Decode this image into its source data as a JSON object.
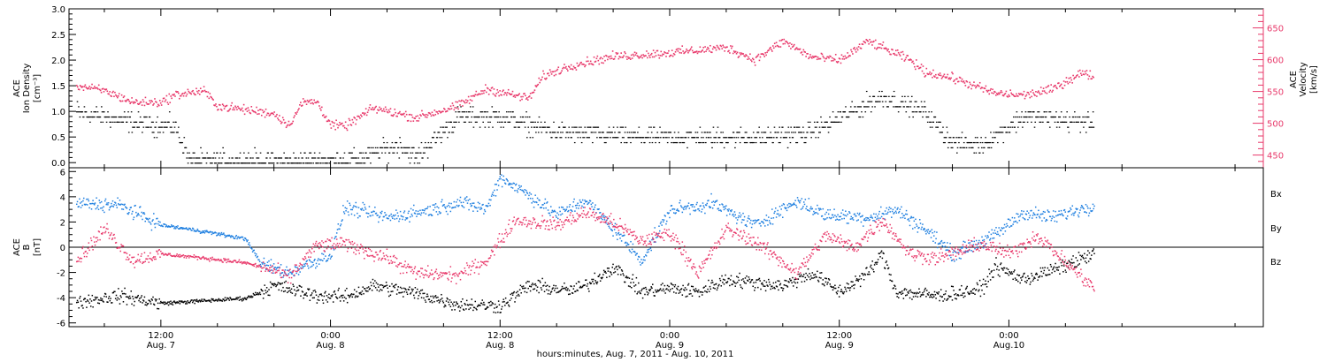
{
  "chart_data": [
    {
      "type": "scatter",
      "panel": "top",
      "ylabel_lines": [
        "ACE",
        "Ion Density",
        "[cm⁻³]"
      ],
      "y2label_lines": [
        "ACE",
        "Velocity",
        "[km/s]"
      ],
      "ylim": [
        -0.1,
        3.0
      ],
      "yticks": [
        "0.0",
        "0.5",
        "1.0",
        "1.5",
        "2.0",
        "2.5",
        "3.0"
      ],
      "y2lim": [
        430,
        680
      ],
      "y2ticks": [
        "450",
        "500",
        "550",
        "600",
        "650"
      ],
      "colors": {
        "density": "#000000",
        "velocity": "#e8386a"
      },
      "density_profile_hours_since_aug7_00": [
        [
          6,
          1.0
        ],
        [
          10,
          0.8
        ],
        [
          13,
          0.7
        ],
        [
          14,
          0.05
        ],
        [
          24,
          0.05
        ],
        [
          26,
          0.1
        ],
        [
          29,
          0.35
        ],
        [
          30,
          0.1
        ],
        [
          33,
          0.9
        ],
        [
          36,
          0.9
        ],
        [
          40,
          0.6
        ],
        [
          46,
          0.5
        ],
        [
          54,
          0.5
        ],
        [
          58,
          0.6
        ],
        [
          63,
          1.3
        ],
        [
          66,
          1.0
        ],
        [
          68,
          0.4
        ],
        [
          70,
          0.35
        ],
        [
          73,
          0.9
        ],
        [
          78,
          0.8
        ]
      ],
      "velocity_profile_hours_since_aug7_00": [
        [
          6,
          560
        ],
        [
          8,
          552
        ],
        [
          10,
          534
        ],
        [
          12,
          534
        ],
        [
          13,
          546
        ],
        [
          15,
          552
        ],
        [
          16,
          528
        ],
        [
          18,
          522
        ],
        [
          20,
          516
        ],
        [
          21,
          498
        ],
        [
          22,
          534
        ],
        [
          23,
          535
        ],
        [
          24,
          498
        ],
        [
          25,
          496
        ],
        [
          27,
          525
        ],
        [
          30,
          510
        ],
        [
          33,
          528
        ],
        [
          35,
          555
        ],
        [
          38,
          540
        ],
        [
          39,
          575
        ],
        [
          41,
          592
        ],
        [
          44,
          606
        ],
        [
          48,
          612
        ],
        [
          52,
          620
        ],
        [
          54,
          601
        ],
        [
          56,
          630
        ],
        [
          58,
          605
        ],
        [
          60,
          600
        ],
        [
          62,
          630
        ],
        [
          63,
          620
        ],
        [
          65,
          600
        ],
        [
          66,
          582
        ],
        [
          68,
          572
        ],
        [
          71,
          548
        ],
        [
          73,
          545
        ],
        [
          75,
          554
        ],
        [
          77,
          580
        ],
        [
          78,
          575
        ]
      ]
    },
    {
      "type": "scatter",
      "panel": "bottom",
      "ylabel_lines": [
        "ACE",
        "B",
        "[nT]"
      ],
      "ylim": [
        -6.3,
        6.3
      ],
      "yticks": [
        "-6",
        "-4",
        "-2",
        "0",
        "2",
        "4",
        "6"
      ],
      "xlabel": "hours:minutes, Aug.  7, 2011 - Aug. 10, 2011",
      "xlim_hours": [
        5.5,
        90
      ],
      "xticks": [
        {
          "hours": 12,
          "time": "12:00",
          "date": "Aug. 7"
        },
        {
          "hours": 24,
          "time": "0:00",
          "date": "Aug. 8"
        },
        {
          "hours": 36,
          "time": "12:00",
          "date": "Aug. 8"
        },
        {
          "hours": 48,
          "time": "0:00",
          "date": "Aug. 9"
        },
        {
          "hours": 60,
          "time": "12:00",
          "date": "Aug. 9"
        },
        {
          "hours": 72,
          "time": "0:00",
          "date": "Aug.10"
        }
      ],
      "series": [
        {
          "name": "Bx",
          "color": "#000000",
          "profile": [
            [
              6,
              -4.3
            ],
            [
              9,
              -3.8
            ],
            [
              12,
              -4.4
            ],
            [
              15,
              -4.2
            ],
            [
              18,
              -4.0
            ],
            [
              20,
              -3.0
            ],
            [
              23,
              -3.8
            ],
            [
              25,
              -3.9
            ],
            [
              27,
              -3.0
            ],
            [
              30,
              -3.6
            ],
            [
              33,
              -4.5
            ],
            [
              36,
              -4.6
            ],
            [
              38,
              -3.0
            ],
            [
              41,
              -3.4
            ],
            [
              42,
              -3.0
            ],
            [
              44,
              -1.5
            ],
            [
              46,
              -3.5
            ],
            [
              48,
              -3.2
            ],
            [
              50,
              -3.5
            ],
            [
              52,
              -2.5
            ],
            [
              56,
              -3.0
            ],
            [
              58,
              -2.0
            ],
            [
              60,
              -3.5
            ],
            [
              62,
              -2.0
            ],
            [
              63,
              -0.5
            ],
            [
              64,
              -3.5
            ],
            [
              67,
              -3.8
            ],
            [
              70,
              -3.3
            ],
            [
              71,
              -1.5
            ],
            [
              73,
              -2.5
            ],
            [
              75,
              -1.8
            ],
            [
              78,
              -0.5
            ]
          ]
        },
        {
          "name": "By",
          "color": "#1e7fe0",
          "profile": [
            [
              6,
              3.5
            ],
            [
              9,
              3.4
            ],
            [
              12,
              1.8
            ],
            [
              15,
              1.3
            ],
            [
              18,
              0.7
            ],
            [
              19,
              -1.2
            ],
            [
              21,
              -2.0
            ],
            [
              24,
              -0.5
            ],
            [
              25,
              3.2
            ],
            [
              28,
              2.4
            ],
            [
              31,
              3.0
            ],
            [
              33,
              3.6
            ],
            [
              35,
              3.1
            ],
            [
              36,
              5.6
            ],
            [
              38,
              4.2
            ],
            [
              40,
              2.6
            ],
            [
              42,
              3.8
            ],
            [
              44,
              1.5
            ],
            [
              46,
              -1.0
            ],
            [
              48,
              3.0
            ],
            [
              51,
              3.5
            ],
            [
              54,
              1.8
            ],
            [
              57,
              3.7
            ],
            [
              59,
              2.6
            ],
            [
              62,
              2.4
            ],
            [
              64,
              3.0
            ],
            [
              66,
              1.5
            ],
            [
              68,
              -0.5
            ],
            [
              71,
              1.0
            ],
            [
              73,
              2.8
            ],
            [
              75,
              2.4
            ],
            [
              78,
              3.4
            ]
          ]
        },
        {
          "name": "Bz",
          "color": "#e8386a",
          "profile": [
            [
              6,
              -1.0
            ],
            [
              8,
              1.5
            ],
            [
              10,
              -1.0
            ],
            [
              12,
              -0.5
            ],
            [
              15,
              -0.8
            ],
            [
              18,
              -1.2
            ],
            [
              20,
              -1.8
            ],
            [
              21,
              -2.4
            ],
            [
              23,
              0.2
            ],
            [
              25,
              0.3
            ],
            [
              28,
              -0.8
            ],
            [
              30,
              -2.0
            ],
            [
              33,
              -2.2
            ],
            [
              35,
              -1.0
            ],
            [
              37,
              2.2
            ],
            [
              40,
              1.8
            ],
            [
              42,
              2.8
            ],
            [
              44,
              2.0
            ],
            [
              46,
              0.5
            ],
            [
              48,
              1.2
            ],
            [
              50,
              -2.0
            ],
            [
              52,
              1.5
            ],
            [
              54,
              0.5
            ],
            [
              57,
              -2.0
            ],
            [
              59,
              1.0
            ],
            [
              61,
              0.0
            ],
            [
              63,
              2.2
            ],
            [
              65,
              -0.5
            ],
            [
              67,
              -0.8
            ],
            [
              70,
              0.3
            ],
            [
              72,
              -0.5
            ],
            [
              74,
              1.0
            ],
            [
              76,
              -1.2
            ],
            [
              78,
              -3.2
            ]
          ]
        }
      ],
      "legend_position": "right"
    }
  ]
}
